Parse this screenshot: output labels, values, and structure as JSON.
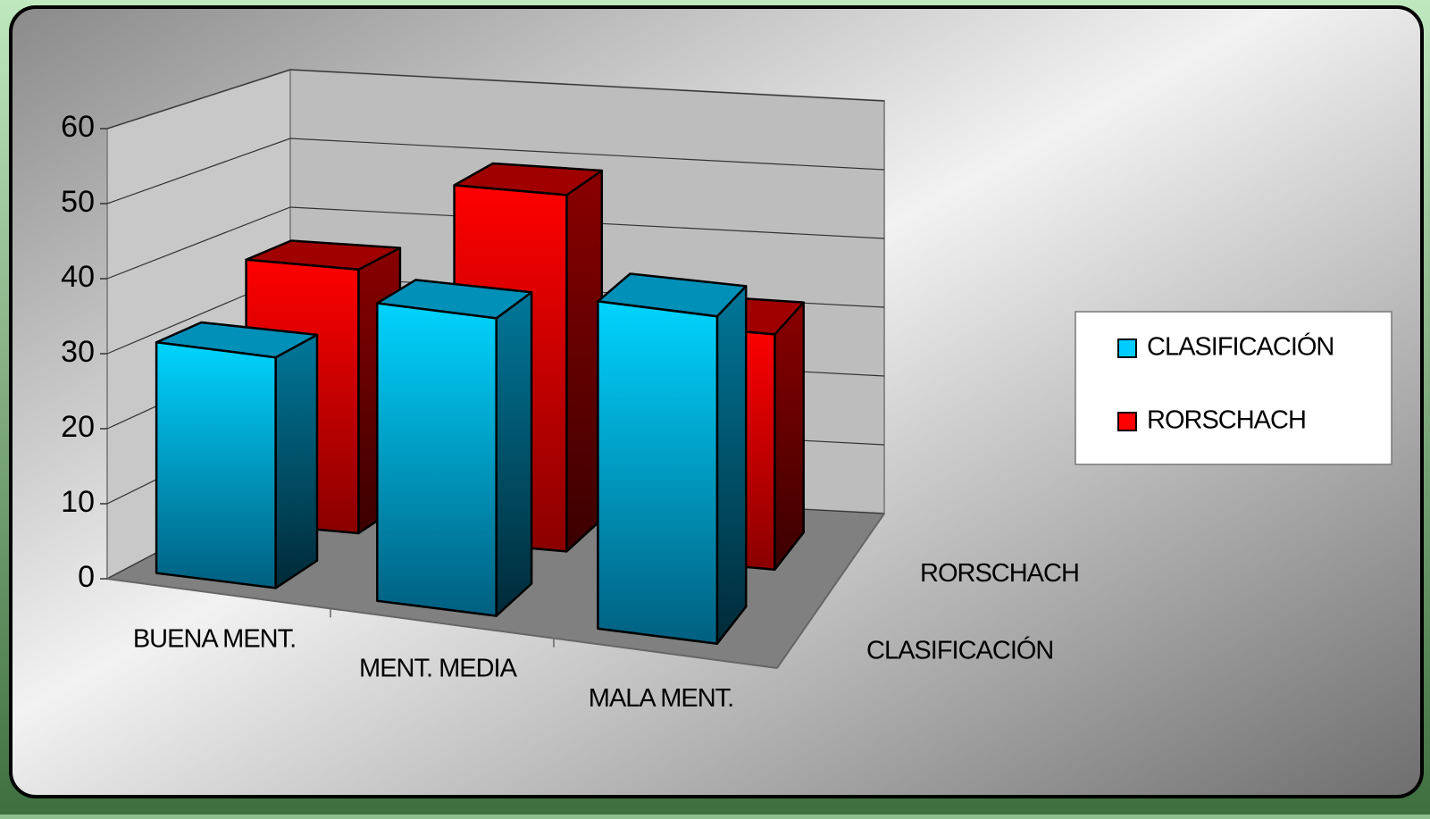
{
  "chart_data": {
    "type": "bar3d",
    "categories": [
      "BUENA MENT.",
      "MENT. MEDIA",
      "MALA MENT."
    ],
    "series": [
      {
        "name": "CLASIFICACIÓN",
        "color": "#00ccff",
        "values": [
          31,
          40,
          44
        ]
      },
      {
        "name": "RORSCHACH",
        "color": "#ff0000",
        "values": [
          37,
          50,
          33
        ]
      }
    ],
    "ylim": [
      0,
      60
    ],
    "yticks": [
      0,
      10,
      20,
      30,
      40,
      50,
      60
    ],
    "grid": true,
    "legend": "right"
  }
}
